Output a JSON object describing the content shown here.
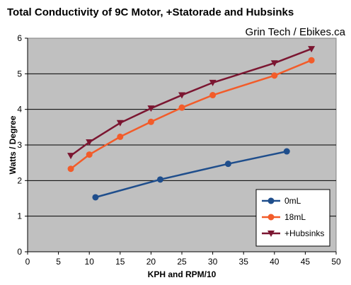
{
  "chart_data": {
    "type": "line",
    "title": "Total Conductivity of 9C Motor, +Statorade and Hubsinks",
    "source_label": "Grin Tech / Ebikes.ca",
    "xlabel": "KPH and RPM/10",
    "ylabel": "Watts / Degree",
    "xlim": [
      0,
      50
    ],
    "ylim": [
      0,
      6
    ],
    "xticks": [
      "0",
      "5",
      "10",
      "15",
      "20",
      "25",
      "30",
      "35",
      "40",
      "45",
      "50"
    ],
    "yticks": [
      "0",
      "1",
      "2",
      "3",
      "4",
      "5",
      "6"
    ],
    "grid": "horizontal",
    "legend_position": "bottom-right",
    "series": [
      {
        "name": "0mL",
        "color": "#1F4E8C",
        "marker": "circle",
        "x": [
          11,
          21.5,
          32.5,
          42
        ],
        "y": [
          1.53,
          2.03,
          2.47,
          2.82
        ]
      },
      {
        "name": "18mL",
        "color": "#F25C2A",
        "marker": "circle",
        "x": [
          7,
          10,
          15,
          20,
          25,
          30,
          40,
          46
        ],
        "y": [
          2.33,
          2.73,
          3.23,
          3.65,
          4.05,
          4.4,
          4.95,
          5.38
        ]
      },
      {
        "name": "+Hubsinks",
        "color": "#7B1631",
        "marker": "triangle-down",
        "x": [
          7,
          10,
          15,
          20,
          25,
          30,
          40,
          46
        ],
        "y": [
          2.7,
          3.08,
          3.62,
          4.03,
          4.4,
          4.75,
          5.3,
          5.7
        ]
      }
    ]
  }
}
